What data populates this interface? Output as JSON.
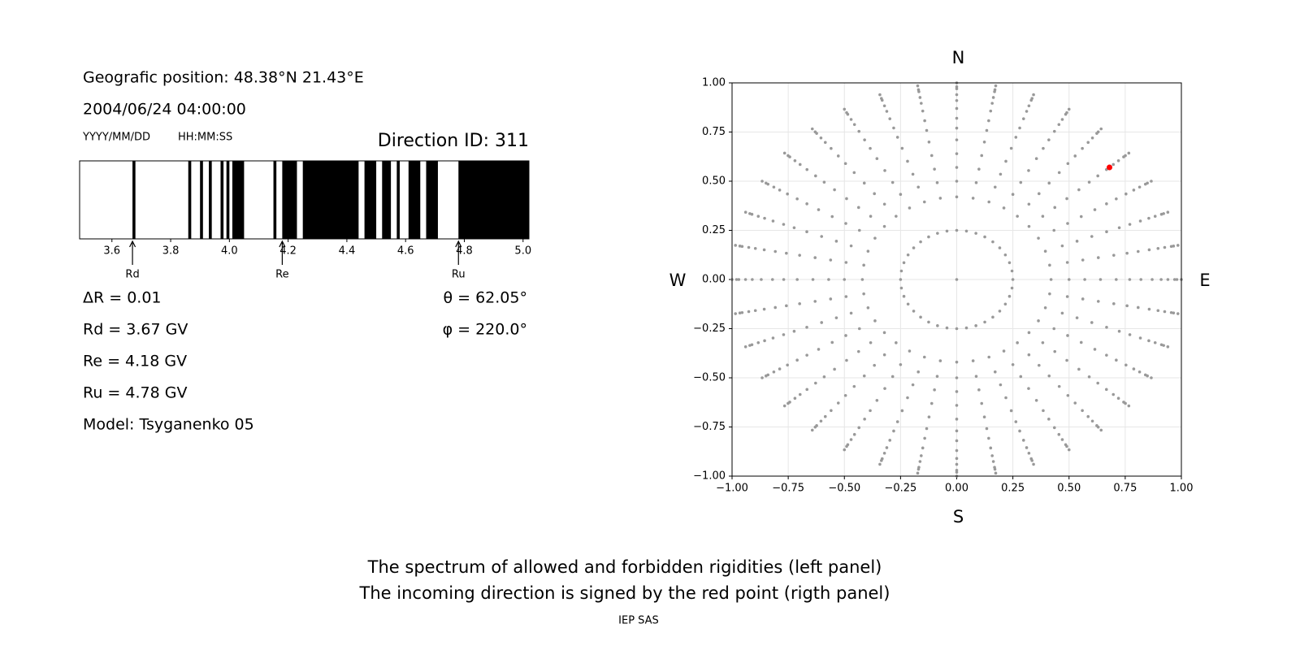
{
  "header": {
    "position": "Geografic position: 48.38°N 21.43°E",
    "datetime": "2004/06/24 04:00:00",
    "date_format": "YYYY/MM/DD",
    "time_format": "HH:MM:SS",
    "direction": "Direction ID: 311"
  },
  "info": {
    "delta_r": "ΔR = 0.01",
    "rd": "Rd = 3.67 GV",
    "re": "Re = 4.18 GV",
    "ru": "Ru = 4.78 GV",
    "model": "Model: Tsyganenko 05",
    "theta": "θ = 62.05°",
    "phi": "φ = 220.0°"
  },
  "chart_data": [
    {
      "type": "spectrum",
      "color": "#000000",
      "bands": [
        [
          3.67,
          3.68
        ],
        [
          3.86,
          3.87
        ],
        [
          3.9,
          3.91
        ],
        [
          3.93,
          3.94
        ],
        [
          3.97,
          3.98
        ],
        [
          3.99,
          4.0
        ],
        [
          4.01,
          4.05
        ],
        [
          4.15,
          4.16
        ],
        [
          4.18,
          4.23
        ],
        [
          4.25,
          4.44
        ],
        [
          4.46,
          4.5
        ],
        [
          4.52,
          4.55
        ],
        [
          4.57,
          4.58
        ],
        [
          4.61,
          4.65
        ],
        [
          4.67,
          4.71
        ],
        [
          4.78,
          5.02
        ]
      ],
      "markers": [
        {
          "label": "Rd",
          "value": 3.67
        },
        {
          "label": "Re",
          "value": 4.18
        },
        {
          "label": "Ru",
          "value": 4.78
        }
      ],
      "xlim": [
        3.49,
        5.02
      ],
      "xticks": [
        3.6,
        3.8,
        {
          "value": 4,
          "label": "4.0"
        },
        4.2,
        4.4,
        4.6,
        4.8,
        {
          "value": 5,
          "label": "5.0"
        }
      ]
    },
    {
      "type": "polar-scatter",
      "labels": {
        "north": "N",
        "south": "S",
        "west": "W",
        "east": "E"
      },
      "azimuths": [
        0,
        10,
        20,
        30,
        40,
        50,
        60,
        70,
        80,
        90,
        100,
        110,
        120,
        130,
        140,
        150,
        160,
        170,
        180,
        190,
        200,
        210,
        220,
        230,
        240,
        250,
        260,
        270,
        280,
        290,
        300,
        310,
        320,
        330,
        340,
        350
      ],
      "radii": [
        0.25,
        0.42,
        0.5,
        0.57,
        0.64,
        0.71,
        0.77,
        0.82,
        0.87,
        0.91,
        0.94,
        0.97,
        0.98,
        1.0
      ],
      "color": "#999999",
      "center": {
        "x": 0,
        "y": 0
      },
      "highlight": {
        "x": 0.68,
        "y": 0.57,
        "color": "#ff0000"
      },
      "xlim": [
        -1,
        1
      ],
      "ylim": [
        -1,
        1
      ],
      "xticks": [
        {
          "value": -1,
          "label": "−1.00"
        },
        {
          "value": -0.75,
          "label": "−0.75"
        },
        {
          "value": -0.5,
          "label": "−0.50"
        },
        {
          "value": -0.25,
          "label": "−0.25"
        },
        {
          "value": 0,
          "label": "0.00"
        },
        {
          "value": 0.25,
          "label": "0.25"
        },
        {
          "value": 0.5,
          "label": "0.50"
        },
        {
          "value": 0.75,
          "label": "0.75"
        },
        {
          "value": 1,
          "label": "1.00"
        }
      ],
      "yticks": [
        {
          "value": -1,
          "label": "−1.00"
        },
        {
          "value": -0.75,
          "label": "−0.75"
        },
        {
          "value": -0.5,
          "label": "−0.50"
        },
        {
          "value": -0.25,
          "label": "−0.25"
        },
        {
          "value": 0,
          "label": "0.00"
        },
        {
          "value": 0.25,
          "label": "0.25"
        },
        {
          "value": 0.5,
          "label": "0.50"
        },
        {
          "value": 0.75,
          "label": "0.75"
        },
        {
          "value": 1,
          "label": "1.00"
        }
      ],
      "grid": true
    }
  ],
  "footer": {
    "line1": "The spectrum of allowed and forbidden rigidities (left panel)",
    "line2": "The incoming direction is signed by the red point (rigth panel)",
    "credit": "IEP SAS"
  }
}
